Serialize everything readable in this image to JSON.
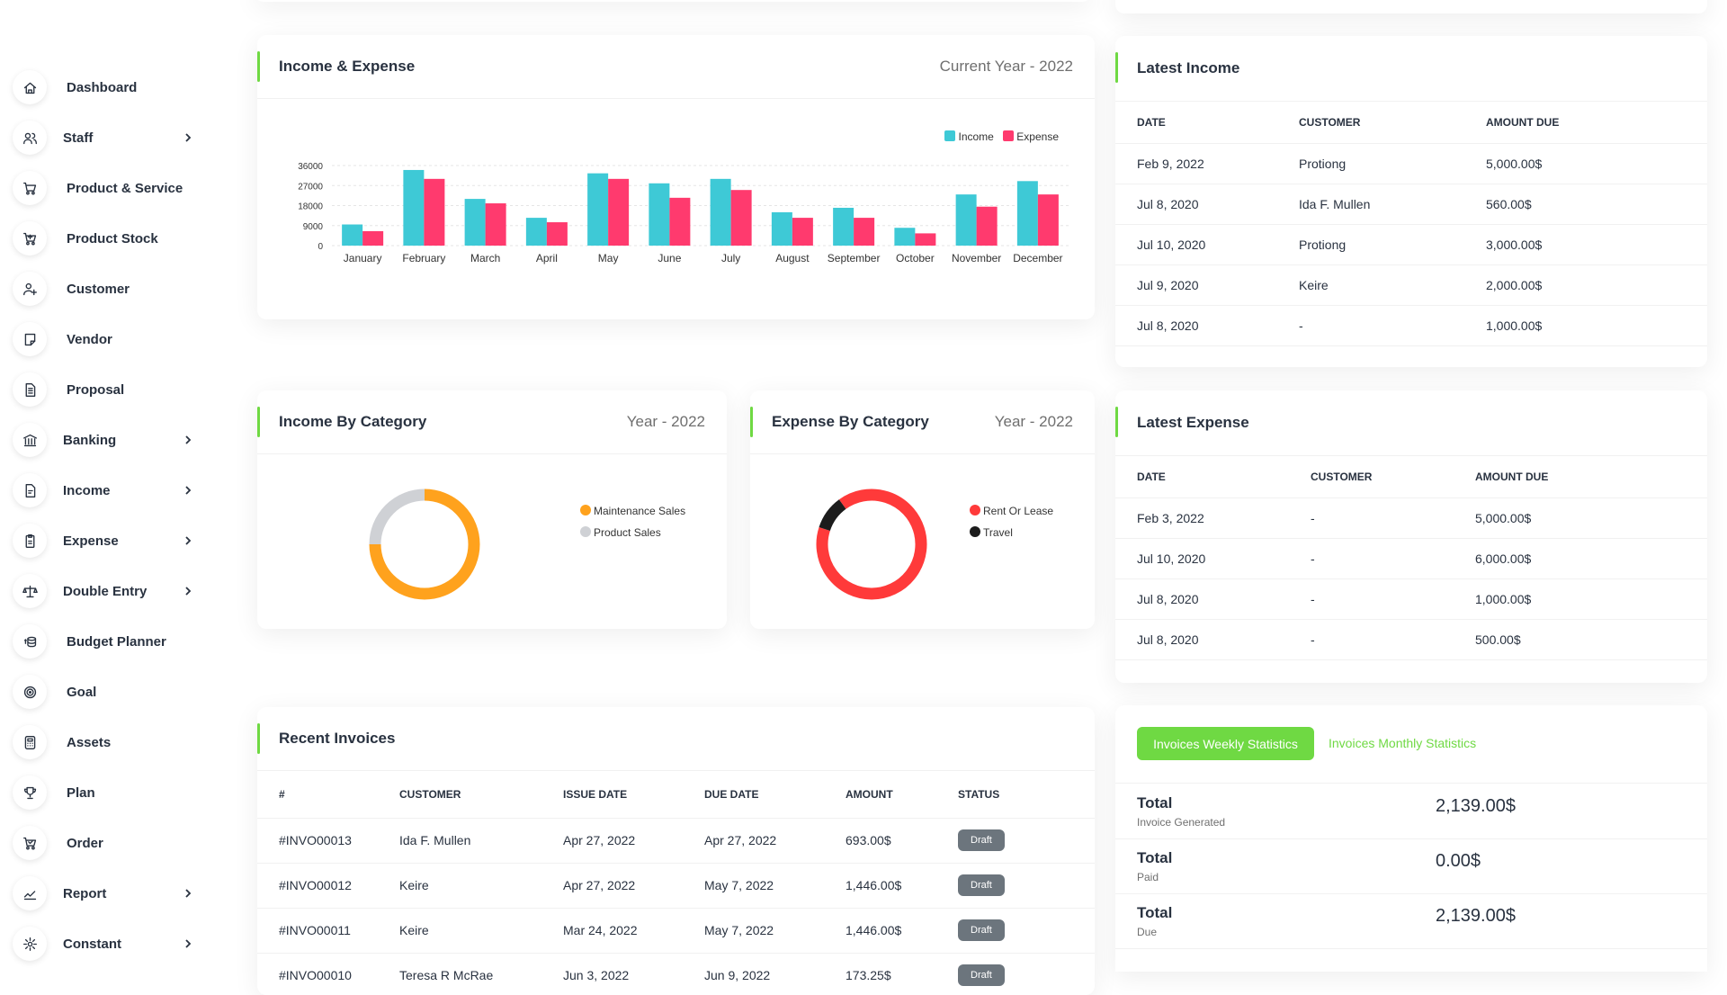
{
  "sidebar": {
    "items": [
      {
        "label": "Dashboard",
        "icon": "home-icon",
        "chevron": false
      },
      {
        "label": "Staff",
        "icon": "users-icon",
        "chevron": true
      },
      {
        "label": "Product & Service",
        "icon": "cart-icon",
        "chevron": false
      },
      {
        "label": "Product Stock",
        "icon": "cart-plus-icon",
        "chevron": false
      },
      {
        "label": "Customer",
        "icon": "user-plus-icon",
        "chevron": false
      },
      {
        "label": "Vendor",
        "icon": "note-icon",
        "chevron": false
      },
      {
        "label": "Proposal",
        "icon": "file-text-icon",
        "chevron": false
      },
      {
        "label": "Banking",
        "icon": "building-bank-icon",
        "chevron": true
      },
      {
        "label": "Income",
        "icon": "file-invoice-icon",
        "chevron": true
      },
      {
        "label": "Expense",
        "icon": "file-report-icon",
        "chevron": true
      },
      {
        "label": "Double Entry",
        "icon": "scale-icon",
        "chevron": true
      },
      {
        "label": "Budget Planner",
        "icon": "coins-icon",
        "chevron": false
      },
      {
        "label": "Goal",
        "icon": "target-icon",
        "chevron": false
      },
      {
        "label": "Assets",
        "icon": "calculator-icon",
        "chevron": false
      },
      {
        "label": "Plan",
        "icon": "trophy-icon",
        "chevron": false
      },
      {
        "label": "Order",
        "icon": "cart-check-icon",
        "chevron": false
      },
      {
        "label": "Report",
        "icon": "chart-line-icon",
        "chevron": true
      },
      {
        "label": "Constant",
        "icon": "settings-icon",
        "chevron": true
      }
    ]
  },
  "income_expense": {
    "title": "Income & Expense",
    "subtitle": "Current Year - 2022",
    "legend": {
      "income": "Income",
      "expense": "Expense"
    },
    "colors": {
      "income": "#3ec9d6",
      "expense": "#ff3a6e"
    }
  },
  "chart_data": {
    "type": "bar",
    "categories": [
      "January",
      "February",
      "March",
      "April",
      "May",
      "June",
      "July",
      "August",
      "September",
      "October",
      "November",
      "December"
    ],
    "yticks": [
      "36000",
      "27000",
      "18000",
      "9000",
      "0"
    ],
    "ylim": [
      0,
      36000
    ],
    "series": [
      {
        "name": "Income",
        "values": [
          9500,
          34000,
          21000,
          12500,
          32500,
          28000,
          30000,
          15000,
          17000,
          8000,
          23000,
          29000
        ]
      },
      {
        "name": "Expense",
        "values": [
          6500,
          30000,
          19000,
          10500,
          30000,
          21500,
          25000,
          12500,
          12500,
          5500,
          17500,
          23000
        ]
      }
    ]
  },
  "income_by_category": {
    "title": "Income By Category",
    "subtitle": "Year - 2022",
    "items": [
      {
        "label": "Maintenance Sales",
        "color": "#ffa21d",
        "value": 75
      },
      {
        "label": "Product Sales",
        "color": "#cfd1d5",
        "value": 25
      }
    ]
  },
  "expense_by_category": {
    "title": "Expense By Category",
    "subtitle": "Year - 2022",
    "items": [
      {
        "label": "Rent Or Lease",
        "color": "#ff3a3a",
        "value": 90
      },
      {
        "label": "Travel",
        "color": "#1c1c1c",
        "value": 10
      }
    ]
  },
  "latest_income": {
    "title": "Latest Income",
    "columns": [
      "DATE",
      "CUSTOMER",
      "AMOUNT DUE"
    ],
    "rows": [
      [
        "Feb 9, 2022",
        "Protiong",
        "5,000.00$"
      ],
      [
        "Jul 8, 2020",
        "Ida F. Mullen",
        "560.00$"
      ],
      [
        "Jul 10, 2020",
        "Protiong",
        "3,000.00$"
      ],
      [
        "Jul 9, 2020",
        "Keire",
        "2,000.00$"
      ],
      [
        "Jul 8, 2020",
        "-",
        "1,000.00$"
      ]
    ]
  },
  "latest_expense": {
    "title": "Latest Expense",
    "columns": [
      "DATE",
      "CUSTOMER",
      "AMOUNT DUE"
    ],
    "rows": [
      [
        "Feb 3, 2022",
        "-",
        "5,000.00$"
      ],
      [
        "Jul 10, 2020",
        "-",
        "6,000.00$"
      ],
      [
        "Jul 8, 2020",
        "-",
        "1,000.00$"
      ],
      [
        "Jul 8, 2020",
        "-",
        "500.00$"
      ]
    ]
  },
  "recent_invoices": {
    "title": "Recent Invoices",
    "columns": [
      "#",
      "CUSTOMER",
      "ISSUE DATE",
      "DUE DATE",
      "AMOUNT",
      "STATUS"
    ],
    "rows": [
      [
        "#INVO00013",
        "Ida F. Mullen",
        "Apr 27, 2022",
        "Apr 27, 2022",
        "693.00$",
        "Draft"
      ],
      [
        "#INVO00012",
        "Keire",
        "Apr 27, 2022",
        "May 7, 2022",
        "1,446.00$",
        "Draft"
      ],
      [
        "#INVO00011",
        "Keire",
        "Mar 24, 2022",
        "May 7, 2022",
        "1,446.00$",
        "Draft"
      ],
      [
        "#INVO00010",
        "Teresa R McRae",
        "Jun 3, 2022",
        "Jun 9, 2022",
        "173.25$",
        "Draft"
      ]
    ]
  },
  "invoice_stats": {
    "tab_weekly": "Invoices Weekly Statistics",
    "tab_monthly": "Invoices Monthly Statistics",
    "rows": [
      {
        "title": "Total",
        "sub": "Invoice Generated",
        "value": "2,139.00$"
      },
      {
        "title": "Total",
        "sub": "Paid",
        "value": "0.00$"
      },
      {
        "title": "Total",
        "sub": "Due",
        "value": "2,139.00$"
      }
    ]
  }
}
